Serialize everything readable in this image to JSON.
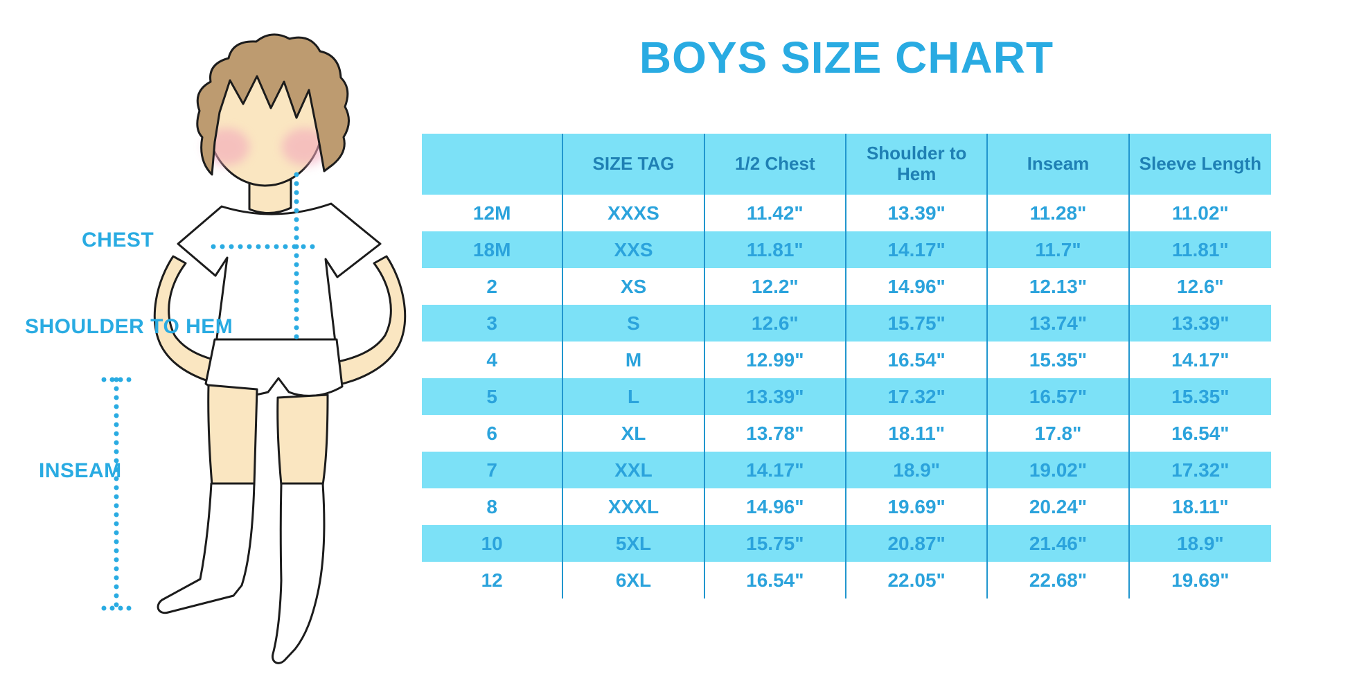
{
  "title": "BOYS SIZE CHART",
  "diagram": {
    "labels": {
      "chest": "CHEST",
      "shoulder_to_hem": "SHOULDER TO HEM",
      "inseam": "INSEAM"
    }
  },
  "colors": {
    "accent": "#29ABE2",
    "band": "#7CE1F7",
    "line": "#2196CE",
    "header_text": "#1F80B4",
    "cell_text": "#2BA3DC",
    "skin": "#FAE6C1",
    "hair": "#BD9B70",
    "blush": "#F2A8BC"
  },
  "chart_data": {
    "type": "table",
    "title": "BOYS SIZE CHART",
    "columns": [
      "",
      "SIZE TAG",
      "1/2 Chest",
      "Shoulder to Hem",
      "Inseam",
      "Sleeve Length"
    ],
    "rows": [
      [
        "12M",
        "XXXS",
        "11.42\"",
        "13.39\"",
        "11.28\"",
        "11.02\""
      ],
      [
        "18M",
        "XXS",
        "11.81\"",
        "14.17\"",
        "11.7\"",
        "11.81\""
      ],
      [
        "2",
        "XS",
        "12.2\"",
        "14.96\"",
        "12.13\"",
        "12.6\""
      ],
      [
        "3",
        "S",
        "12.6\"",
        "15.75\"",
        "13.74\"",
        "13.39\""
      ],
      [
        "4",
        "M",
        "12.99\"",
        "16.54\"",
        "15.35\"",
        "14.17\""
      ],
      [
        "5",
        "L",
        "13.39\"",
        "17.32\"",
        "16.57\"",
        "15.35\""
      ],
      [
        "6",
        "XL",
        "13.78\"",
        "18.11\"",
        "17.8\"",
        "16.54\""
      ],
      [
        "7",
        "XXL",
        "14.17\"",
        "18.9\"",
        "19.02\"",
        "17.32\""
      ],
      [
        "8",
        "XXXL",
        "14.96\"",
        "19.69\"",
        "20.24\"",
        "18.11\""
      ],
      [
        "10",
        "5XL",
        "15.75\"",
        "20.87\"",
        "21.46\"",
        "18.9\""
      ],
      [
        "12",
        "6XL",
        "16.54\"",
        "22.05\"",
        "22.68\"",
        "19.69\""
      ]
    ]
  }
}
